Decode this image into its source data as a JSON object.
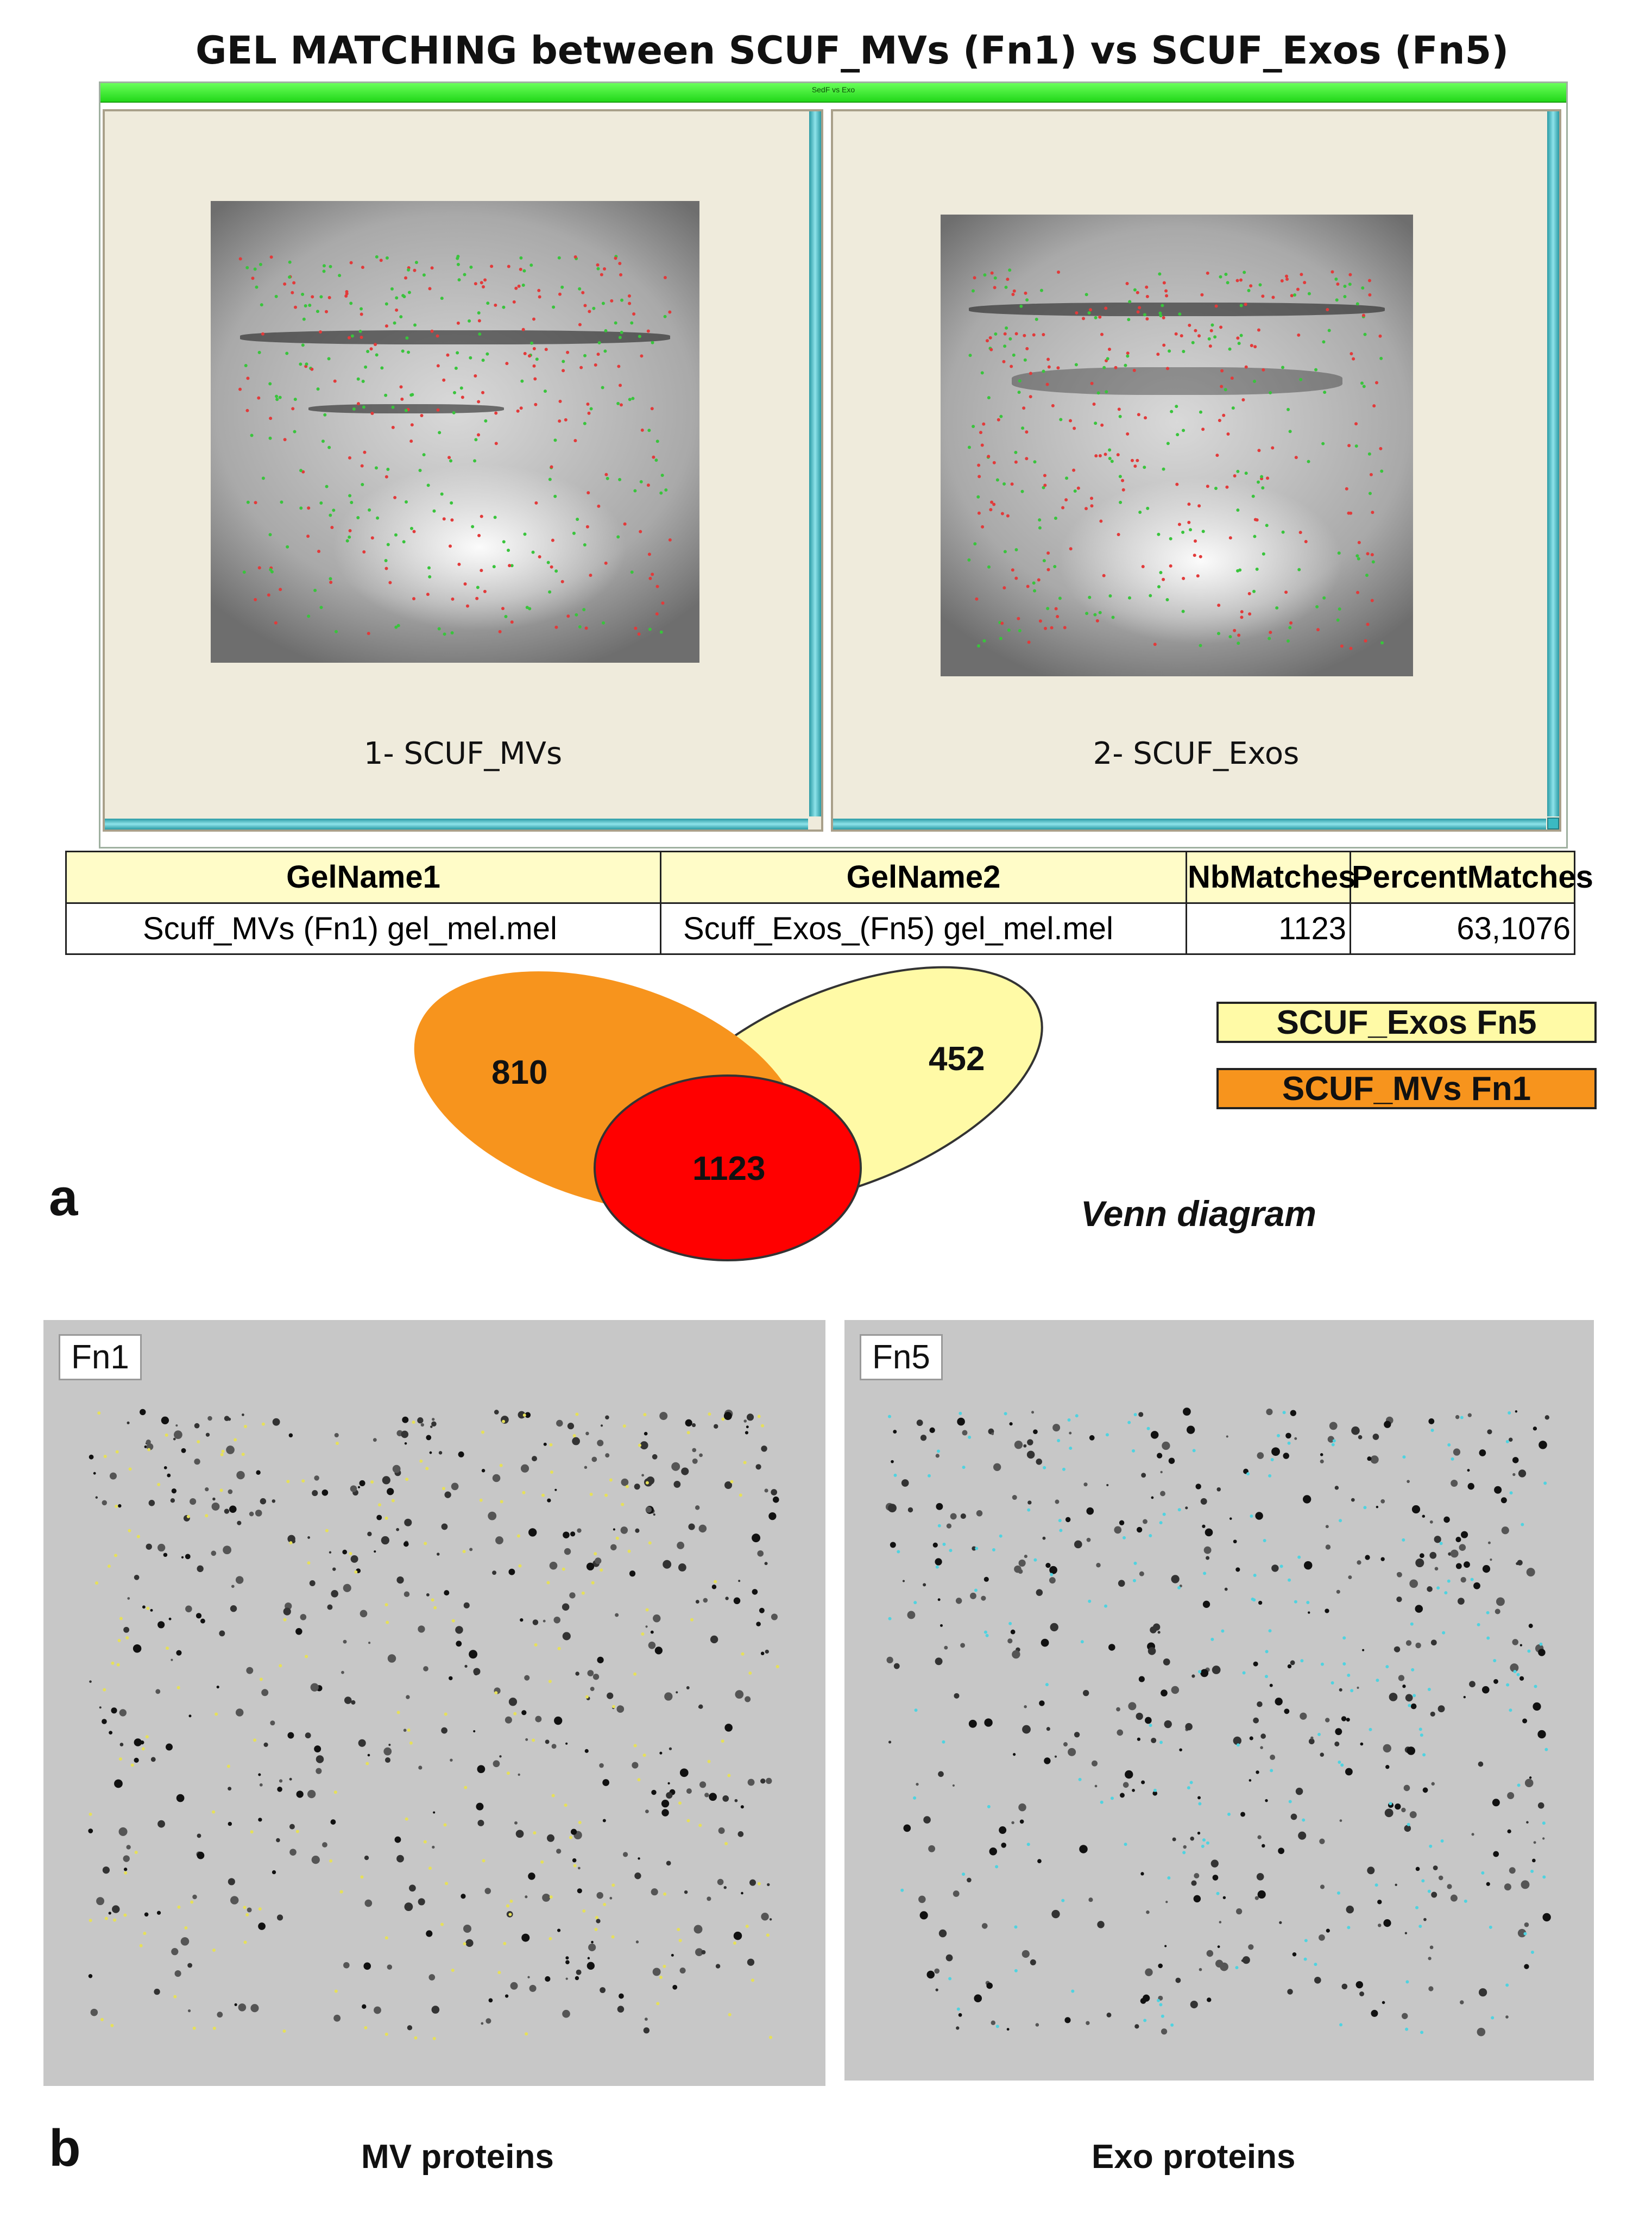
{
  "title": "GEL  MATCHING between  SCUF_MVs (Fn1) vs SCUF_Exos (Fn5)",
  "window": {
    "titlebar_text": "SedF vs Exo",
    "pane_1_label": "1- SCUF_MVs",
    "pane_2_label": "2- SCUF_Exos"
  },
  "table": {
    "headers": [
      "GelName1",
      "GelName2",
      "NbMatches",
      "PercentMatches"
    ],
    "row": [
      "Scuff_MVs  (Fn1) gel_mel.mel",
      "Scuff_Exos_(Fn5) gel_mel.mel",
      "1123",
      "63,1076"
    ]
  },
  "venn": {
    "only_mvs": "810",
    "only_exos": "452",
    "overlap": "1123",
    "caption": "Venn diagram"
  },
  "legend": {
    "exos": "SCUF_Exos Fn5",
    "mvs": "SCUF_MVs Fn1"
  },
  "colors": {
    "mvs": "#f7941d",
    "exos": "#fffaa6",
    "overlap": "#ff0000",
    "titlebar": "#22d81a",
    "scroll": "#2a9aa4"
  },
  "panel_a": "a",
  "panel_b": "b",
  "gel_fn1": {
    "tag": "Fn1",
    "caption": "MV proteins"
  },
  "gel_fn5": {
    "tag": "Fn5",
    "caption": "Exo proteins"
  }
}
